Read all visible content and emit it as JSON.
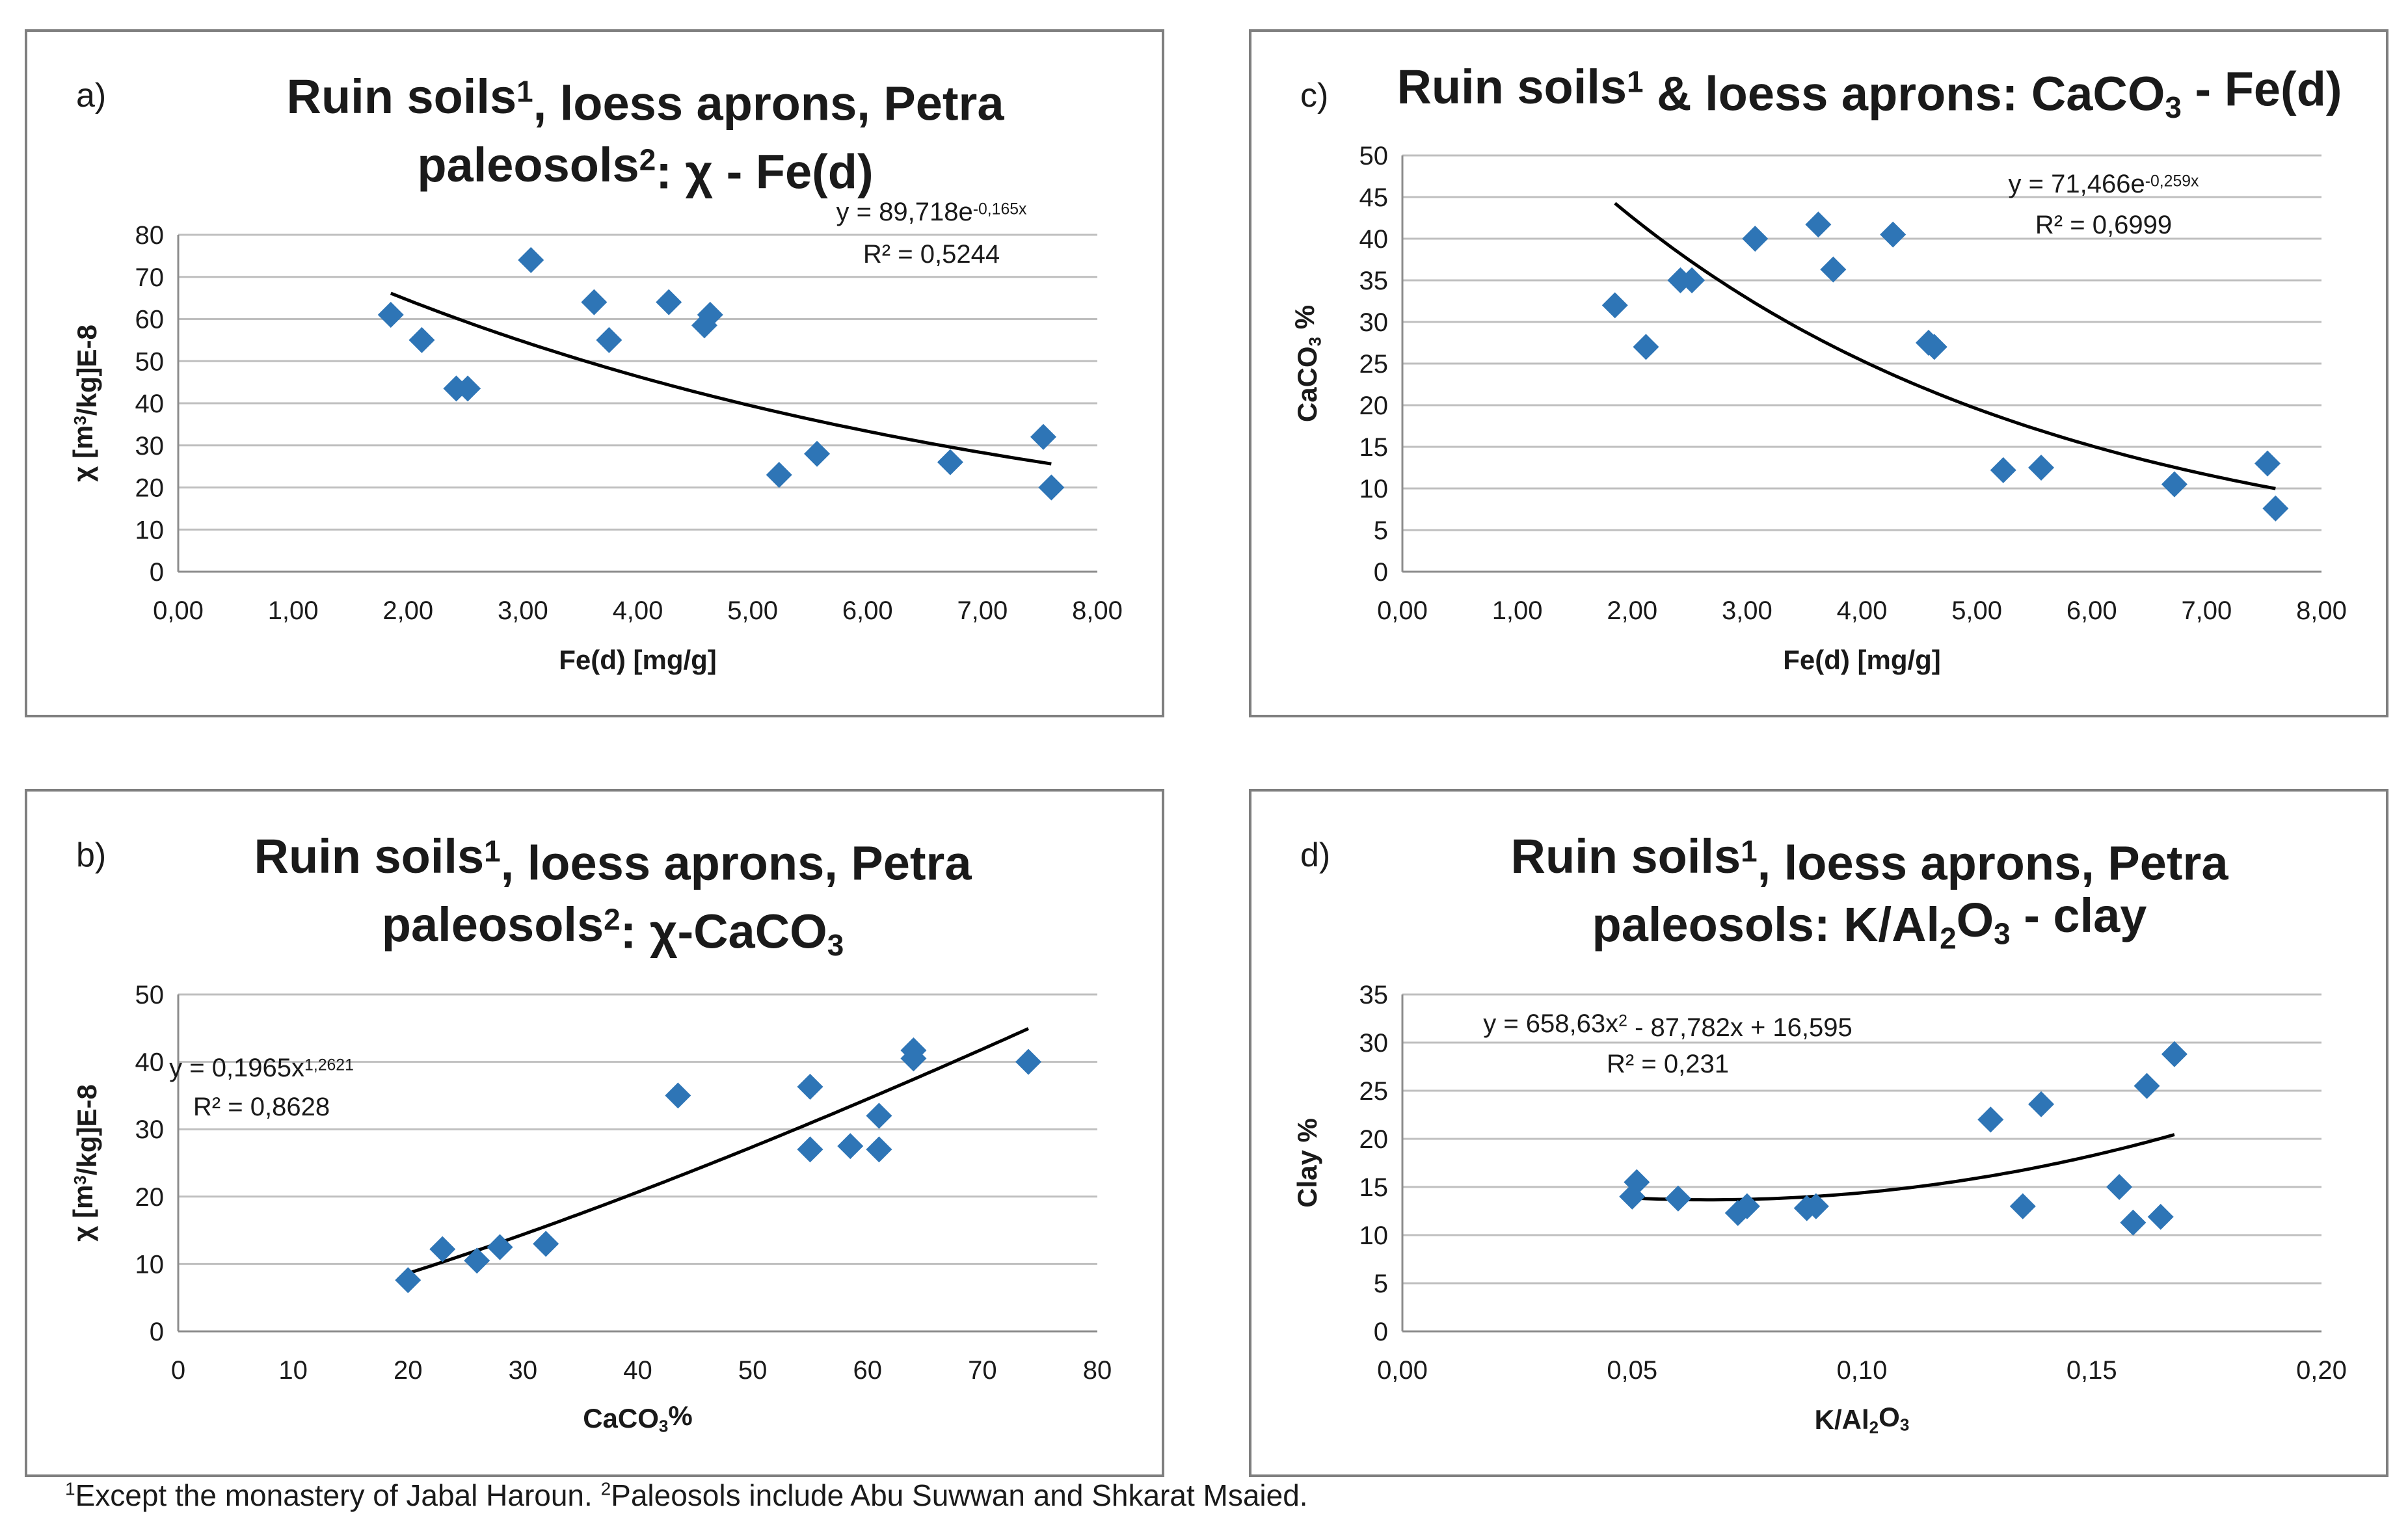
{
  "footnote": {
    "sup1": "1",
    "text1": "Except the monastery of Jabal Haroun. ",
    "sup2": "2",
    "text2": "Paleosols include Abu Suwwan and Shkarat Msaied."
  },
  "chart_data": [
    {
      "id": "a",
      "type": "scatter",
      "panel_label": "a)",
      "title": "Ruin soils1, loess aprons, Petra paleosols2: χ - Fe(d)",
      "title_lines": [
        [
          {
            "t": "Ruin soils"
          },
          {
            "t": "1",
            "sup": true
          },
          {
            "t": ", loess aprons, Petra"
          }
        ],
        [
          {
            "t": "paleosols"
          },
          {
            "t": "2",
            "sup": true
          },
          {
            "t": ": χ - Fe(d)"
          }
        ]
      ],
      "xlabel": "Fe(d) [mg/g]",
      "xlabel_parts": [
        {
          "t": "Fe(d) [mg/g]"
        }
      ],
      "ylabel": "χ [m3/kg]E-8",
      "ylabel_parts": [
        {
          "t": "χ [m"
        },
        {
          "t": "3",
          "sup": true
        },
        {
          "t": "/kg]E-8"
        }
      ],
      "xlim": [
        0,
        8
      ],
      "ylim": [
        0,
        80
      ],
      "xticks": [
        "0,00",
        "1,00",
        "2,00",
        "3,00",
        "4,00",
        "5,00",
        "6,00",
        "7,00",
        "8,00"
      ],
      "yticks": [
        "0",
        "10",
        "20",
        "30",
        "40",
        "50",
        "60",
        "70",
        "80"
      ],
      "x": [
        1.85,
        2.12,
        2.42,
        2.52,
        3.07,
        3.62,
        3.75,
        4.27,
        4.58,
        4.63,
        5.23,
        5.56,
        6.72,
        7.53,
        7.6
      ],
      "y": [
        61,
        55,
        43.5,
        43.5,
        74,
        64,
        55,
        64,
        58.5,
        61,
        23,
        28,
        26,
        32,
        20
      ],
      "trendline": {
        "kind": "exponential",
        "a": 89.718,
        "b": -0.165,
        "x_range": [
          1.85,
          7.6
        ]
      },
      "equation": "y = 89,718e-0,165x",
      "equation_parts": [
        {
          "t": "y = 89,718e"
        },
        {
          "t": "-0,165x",
          "sup": true
        }
      ],
      "r2": "R² = 0,5244"
    },
    {
      "id": "c",
      "type": "scatter",
      "panel_label": "c)",
      "title": "Ruin soils1 & loess aprons: CaCO3 - Fe(d)",
      "title_lines": [
        [
          {
            "t": "Ruin soils"
          },
          {
            "t": "1",
            "sup": true
          },
          {
            "t": " & loess aprons: CaCO"
          },
          {
            "t": "3",
            "sub": true
          },
          {
            "t": " - Fe(d)"
          }
        ]
      ],
      "xlabel": "Fe(d) [mg/g]",
      "xlabel_parts": [
        {
          "t": "Fe(d) [mg/g]"
        }
      ],
      "ylabel": "CaCO3 %",
      "ylabel_parts": [
        {
          "t": "CaCO"
        },
        {
          "t": "3",
          "sub": true
        },
        {
          "t": " %"
        }
      ],
      "xlim": [
        0,
        8
      ],
      "ylim": [
        0,
        50
      ],
      "xticks": [
        "0,00",
        "1,00",
        "2,00",
        "3,00",
        "4,00",
        "5,00",
        "6,00",
        "7,00",
        "8,00"
      ],
      "yticks": [
        "0",
        "5",
        "10",
        "15",
        "20",
        "25",
        "30",
        "35",
        "40",
        "45",
        "50"
      ],
      "x": [
        1.85,
        2.12,
        2.42,
        2.52,
        3.07,
        3.62,
        3.75,
        4.27,
        4.58,
        4.63,
        5.23,
        5.56,
        6.72,
        7.53,
        7.6
      ],
      "y": [
        32,
        27,
        35,
        35,
        40,
        41.7,
        36.3,
        40.5,
        27.5,
        27,
        12.2,
        12.5,
        10.5,
        13,
        7.6
      ],
      "trendline": {
        "kind": "exponential",
        "a": 71.466,
        "b": -0.259,
        "x_range": [
          1.85,
          7.6
        ]
      },
      "equation": "y = 71,466e-0,259x",
      "equation_parts": [
        {
          "t": "y = 71,466e"
        },
        {
          "t": "-0,259x",
          "sup": true
        }
      ],
      "r2": "R² = 0,6999"
    },
    {
      "id": "b",
      "type": "scatter",
      "panel_label": "b)",
      "title": "Ruin soils1, loess aprons, Petra paleosols2: χ-CaCO3",
      "title_lines": [
        [
          {
            "t": "Ruin soils"
          },
          {
            "t": "1",
            "sup": true
          },
          {
            "t": ", loess aprons, Petra"
          }
        ],
        [
          {
            "t": "paleosols"
          },
          {
            "t": "2",
            "sup": true
          },
          {
            "t": ": χ-CaCO"
          },
          {
            "t": "3",
            "sub": true
          }
        ]
      ],
      "xlabel": "CaCO3%",
      "xlabel_parts": [
        {
          "t": "CaCO"
        },
        {
          "t": "3",
          "sub": true
        },
        {
          "t": "%"
        }
      ],
      "ylabel": "χ [m3/kg]E-8",
      "ylabel_parts": [
        {
          "t": "χ [m"
        },
        {
          "t": "3",
          "sup": true
        },
        {
          "t": "/kg]E-8"
        }
      ],
      "xlim": [
        0,
        80
      ],
      "ylim": [
        0,
        50
      ],
      "xticks": [
        "0",
        "10",
        "20",
        "30",
        "40",
        "50",
        "60",
        "70",
        "80"
      ],
      "yticks": [
        "0",
        "10",
        "20",
        "30",
        "40",
        "50"
      ],
      "x": [
        20,
        23,
        26,
        28,
        32,
        43.5,
        55,
        55,
        58.5,
        61,
        61,
        64,
        64,
        74
      ],
      "y": [
        7.6,
        12.2,
        10.5,
        12.5,
        13,
        35,
        36.3,
        27,
        27.5,
        32,
        27,
        41.7,
        40.5,
        40
      ],
      "trendline": {
        "kind": "power",
        "a": 0.1965,
        "b": 1.2621,
        "x_range": [
          20,
          74
        ]
      },
      "equation": "y = 0,1965x1,2621",
      "equation_parts": [
        {
          "t": "y = 0,1965x"
        },
        {
          "t": "1,2621",
          "sup": true
        }
      ],
      "r2": "R² = 0,8628"
    },
    {
      "id": "d",
      "type": "scatter",
      "panel_label": "d)",
      "title": "Ruin soils1, loess aprons, Petra paleosols: K/Al2O3 - clay",
      "title_lines": [
        [
          {
            "t": "Ruin soils"
          },
          {
            "t": "1",
            "sup": true
          },
          {
            "t": ", loess aprons, Petra"
          }
        ],
        [
          {
            "t": "paleosols: K/Al"
          },
          {
            "t": "2",
            "sub": true
          },
          {
            "t": "O"
          },
          {
            "t": "3",
            "sub": true
          },
          {
            "t": " - clay"
          }
        ]
      ],
      "xlabel": "K/Al2O3",
      "xlabel_parts": [
        {
          "t": "K/Al"
        },
        {
          "t": "2",
          "sub": true
        },
        {
          "t": "O"
        },
        {
          "t": "3",
          "sub": true
        }
      ],
      "ylabel": "Clay %",
      "ylabel_parts": [
        {
          "t": "Clay %"
        }
      ],
      "xlim": [
        0,
        0.2
      ],
      "ylim": [
        0,
        35
      ],
      "xticks": [
        "0,00",
        "0,05",
        "0,10",
        "0,15",
        "0,20"
      ],
      "yticks": [
        "0",
        "5",
        "10",
        "15",
        "20",
        "25",
        "30",
        "35"
      ],
      "x": [
        0.05,
        0.051,
        0.06,
        0.073,
        0.075,
        0.088,
        0.09,
        0.128,
        0.135,
        0.139,
        0.156,
        0.159,
        0.162,
        0.165,
        0.168
      ],
      "y": [
        14,
        15.5,
        13.8,
        12.3,
        13,
        12.8,
        13,
        22,
        13,
        23.6,
        15,
        11.3,
        25.5,
        11.9,
        28.8
      ],
      "trendline": {
        "kind": "poly2",
        "c2": 658.63,
        "c1": -87.782,
        "c0": 16.595,
        "x_range": [
          0.05,
          0.168
        ]
      },
      "equation": "y = 658,63x2 - 87,782x + 16,595",
      "equation_parts": [
        {
          "t": "y = 658,63x"
        },
        {
          "t": "2",
          "sup": true
        },
        {
          "t": " - 87,782x + 16,595"
        }
      ],
      "r2": "R² = 0,231"
    }
  ]
}
